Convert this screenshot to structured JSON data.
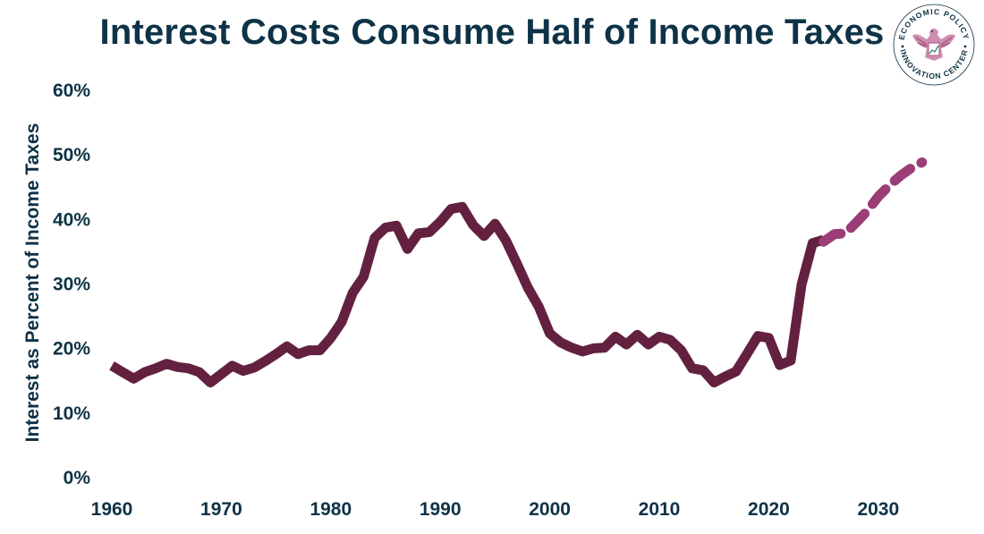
{
  "chart_data": {
    "type": "line",
    "title": "Interest Costs Consume Half of Income Taxes",
    "ylabel": "Interest as Percent of Income Taxes",
    "xlabel": "",
    "xlim": [
      1960,
      2035
    ],
    "ylim": [
      0,
      60
    ],
    "x_ticks": [
      "1960",
      "1970",
      "1980",
      "1990",
      "2000",
      "2010",
      "2020",
      "2030"
    ],
    "y_ticks": [
      "0%",
      "10%",
      "20%",
      "30%",
      "40%",
      "50%",
      "60%"
    ],
    "grid": false,
    "legend": "none",
    "series": [
      {
        "style": "solid",
        "color": "#63213f",
        "points": [
          [
            1960,
            17.2
          ],
          [
            1961,
            16.2
          ],
          [
            1962,
            15.2
          ],
          [
            1963,
            16.2
          ],
          [
            1964,
            16.8
          ],
          [
            1965,
            17.5
          ],
          [
            1966,
            17.0
          ],
          [
            1967,
            16.8
          ],
          [
            1968,
            16.2
          ],
          [
            1969,
            14.6
          ],
          [
            1970,
            15.9
          ],
          [
            1971,
            17.2
          ],
          [
            1972,
            16.4
          ],
          [
            1973,
            16.9
          ],
          [
            1974,
            17.9
          ],
          [
            1975,
            19.0
          ],
          [
            1976,
            20.2
          ],
          [
            1977,
            19.0
          ],
          [
            1978,
            19.6
          ],
          [
            1979,
            19.6
          ],
          [
            1980,
            21.5
          ],
          [
            1981,
            24.0
          ],
          [
            1982,
            28.5
          ],
          [
            1983,
            31.0
          ],
          [
            1984,
            37.0
          ],
          [
            1985,
            38.6
          ],
          [
            1986,
            38.9
          ],
          [
            1987,
            35.3
          ],
          [
            1988,
            37.7
          ],
          [
            1989,
            37.9
          ],
          [
            1990,
            39.5
          ],
          [
            1991,
            41.5
          ],
          [
            1992,
            41.8
          ],
          [
            1993,
            39.0
          ],
          [
            1994,
            37.3
          ],
          [
            1995,
            39.2
          ],
          [
            1996,
            36.6
          ],
          [
            1997,
            33.0
          ],
          [
            1998,
            29.3
          ],
          [
            1999,
            26.3
          ],
          [
            2000,
            22.2
          ],
          [
            2001,
            20.8
          ],
          [
            2002,
            20.0
          ],
          [
            2003,
            19.4
          ],
          [
            2004,
            19.9
          ],
          [
            2005,
            20.0
          ],
          [
            2006,
            21.7
          ],
          [
            2007,
            20.5
          ],
          [
            2008,
            22.0
          ],
          [
            2009,
            20.5
          ],
          [
            2010,
            21.7
          ],
          [
            2011,
            21.2
          ],
          [
            2012,
            19.6
          ],
          [
            2013,
            16.8
          ],
          [
            2014,
            16.5
          ],
          [
            2015,
            14.6
          ],
          [
            2016,
            15.5
          ],
          [
            2017,
            16.3
          ],
          [
            2018,
            19.0
          ],
          [
            2019,
            21.8
          ],
          [
            2020,
            21.5
          ],
          [
            2021,
            17.3
          ],
          [
            2022,
            18.0
          ],
          [
            2023,
            29.8
          ],
          [
            2024,
            36.2
          ],
          [
            2025,
            36.7
          ]
        ]
      },
      {
        "style": "dashed",
        "color": "#9b3d76",
        "points": [
          [
            2025,
            36.4
          ],
          [
            2026,
            37.6
          ],
          [
            2027,
            37.7
          ],
          [
            2028,
            39.4
          ],
          [
            2029,
            41.2
          ],
          [
            2030,
            43.4
          ],
          [
            2031,
            45.1
          ],
          [
            2032,
            46.6
          ],
          [
            2033,
            47.8
          ],
          [
            2034,
            48.7
          ]
        ]
      }
    ]
  },
  "logo": {
    "top_text": "ECONOMIC POLICY",
    "bottom_text": "INNOVATION CENTER",
    "colors": {
      "ring": "#0e3247",
      "eagle": "#a8577f",
      "wing": "#c47aa2"
    }
  }
}
